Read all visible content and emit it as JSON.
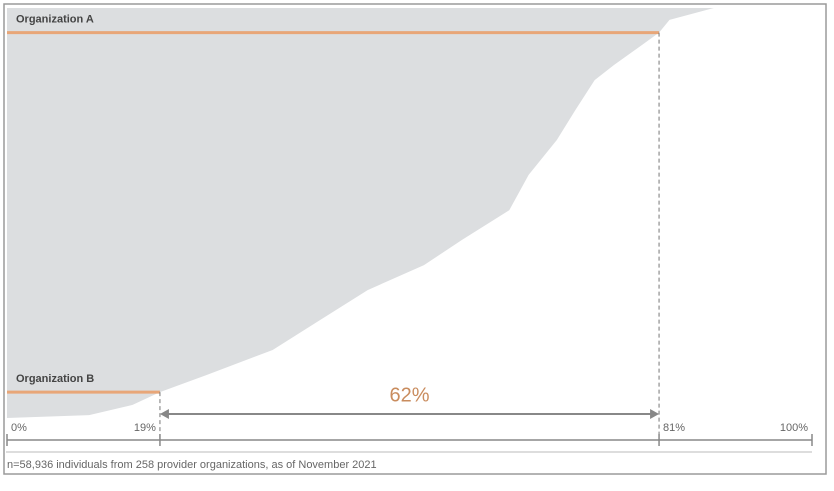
{
  "chart_data": {
    "type": "area",
    "x": [
      0,
      10.2,
      15.6,
      19,
      24.8,
      33,
      38.9,
      44.8,
      51.8,
      56.5,
      62.4,
      64.8,
      68.3,
      70.6,
      73,
      75.4,
      78.9,
      81,
      82.3,
      87.8
    ],
    "values": [
      0,
      0.7,
      3.2,
      6.3,
      10.5,
      16.6,
      23.9,
      31.2,
      37.3,
      43.4,
      50.7,
      59.3,
      67.8,
      75.1,
      82.4,
      86.1,
      91,
      94,
      97.1,
      100
    ],
    "color": "#dcdee0",
    "xlim": [
      0,
      100
    ],
    "ylim": [
      0,
      100
    ],
    "xticks": [
      {
        "value": 0,
        "label": "0%"
      },
      {
        "value": 19,
        "label": "19%"
      },
      {
        "value": 81,
        "label": "81%"
      },
      {
        "value": 100,
        "label": "100%"
      }
    ],
    "markers": [
      {
        "label": "Organization A",
        "y": 94,
        "x": 81,
        "color": "#e8a678"
      },
      {
        "label": "Organization B",
        "y": 6.3,
        "x": 19,
        "color": "#e8a678"
      }
    ],
    "span": {
      "value": 62,
      "label": "62%",
      "from": 19,
      "to": 81,
      "color": "#c98c5e"
    },
    "footnote": "n=58,936 individuals from 258 provider organizations, as of November 2021"
  }
}
